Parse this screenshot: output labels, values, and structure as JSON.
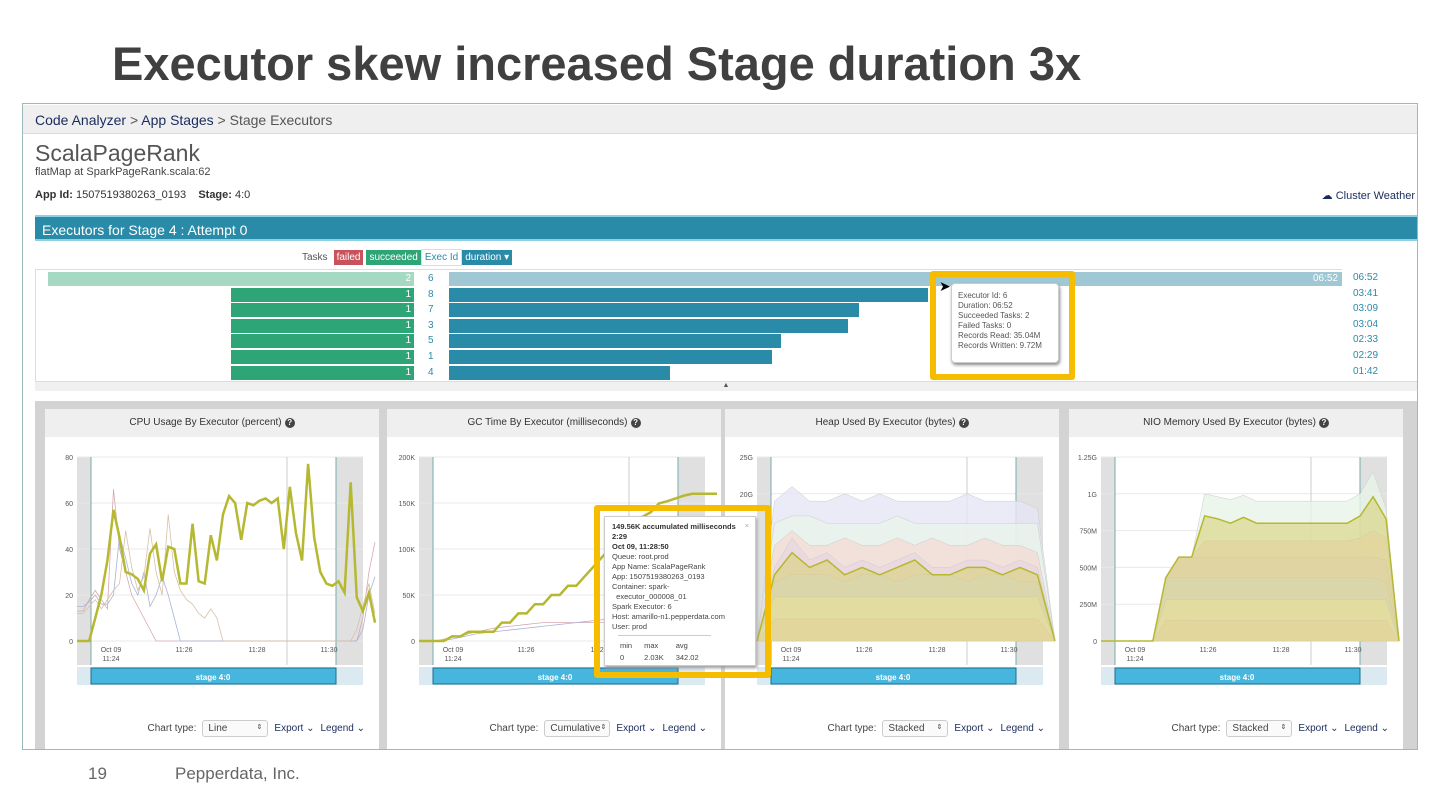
{
  "slide": {
    "title": "Executor skew increased Stage duration 3x",
    "page_number": "19",
    "footer": "Pepperdata, Inc."
  },
  "breadcrumb": {
    "items": [
      "Code Analyzer",
      "App Stages",
      "Stage Executors"
    ],
    "sep": ">"
  },
  "app": {
    "name": "ScalaPageRank",
    "subtitle": "flatMap at SparkPageRank.scala:62",
    "app_id_label": "App Id:",
    "app_id": "1507519380263_0193",
    "stage_label": "Stage:",
    "stage": "4:0",
    "weather": "Cluster Weather"
  },
  "executors": {
    "header": "Executors for Stage 4 : Attempt 0",
    "legend": {
      "tasks": "Tasks",
      "failed": "failed",
      "succeeded": "succeeded",
      "exec_id": "Exec Id",
      "duration": "duration ▾"
    },
    "rows": [
      {
        "id": "6",
        "succeeded": 2,
        "duration": "06:52",
        "seconds": 412
      },
      {
        "id": "8",
        "succeeded": 1,
        "duration": "03:41",
        "seconds": 221
      },
      {
        "id": "7",
        "succeeded": 1,
        "duration": "03:09",
        "seconds": 189
      },
      {
        "id": "3",
        "succeeded": 1,
        "duration": "03:04",
        "seconds": 184
      },
      {
        "id": "5",
        "succeeded": 1,
        "duration": "02:33",
        "seconds": 153
      },
      {
        "id": "1",
        "succeeded": 1,
        "duration": "02:29",
        "seconds": 149
      },
      {
        "id": "4",
        "succeeded": 1,
        "duration": "01:42",
        "seconds": 102
      }
    ],
    "tooltip": [
      "Executor Id: 6",
      "Duration: 06:52",
      "Succeeded Tasks: 2",
      "Failed Tasks: 0",
      "Records Read: 35.04M",
      "Records Written: 9.72M"
    ]
  },
  "gc_tooltip": {
    "lines": [
      "149.56K accumulated milliseconds",
      "2:29",
      "Oct 09, 11:28:50",
      "Queue: root.prod",
      "App Name: ScalaPageRank",
      "App: 1507519380263_0193",
      "Container: spark-",
      "  executor_000008_01",
      "Spark Executor: 6",
      "Host: amarillo-n1.pepperdata.com",
      "User: prod"
    ],
    "stats_headers": [
      "min",
      "max",
      "avg"
    ],
    "stats": [
      "0",
      "2.03K",
      "342.02"
    ],
    "close": "×"
  },
  "controls": {
    "chart_type_label": "Chart type:",
    "export": "Export ⌄",
    "legend": "Legend ⌄",
    "stage_label": "stage 4:0"
  },
  "colors": {
    "accent": "#2a8ba8",
    "highlight": "#f6bc00",
    "main_series": "#b5b830",
    "succeeded": "#2ea577",
    "failed": "#c9535d"
  },
  "chart_data": [
    {
      "type": "line",
      "title": "CPU Usage By Executor (percent)",
      "chart_type": "Line",
      "ylim": [
        0,
        80
      ],
      "yticks": [
        "0",
        "20",
        "40",
        "60",
        "80"
      ],
      "ytick_values": [
        0,
        20,
        40,
        60,
        80
      ],
      "xticks": [
        "Oct 09\n11:24",
        "11:26",
        "11:28",
        "11:30"
      ],
      "main": [
        0,
        0,
        0,
        10,
        20,
        35,
        57,
        45,
        30,
        29,
        27,
        22,
        38,
        42,
        26,
        41,
        40,
        25,
        25,
        51,
        26,
        25,
        46,
        35,
        55,
        63,
        60,
        44,
        60,
        59,
        61,
        62,
        60,
        62,
        40,
        67,
        47,
        35,
        77,
        45,
        30,
        25,
        24,
        26,
        21,
        69,
        19,
        13,
        21,
        8
      ],
      "others": [
        [
          13,
          13,
          18,
          22,
          18,
          14,
          66,
          40,
          30,
          20,
          15,
          10,
          5,
          0,
          0,
          0,
          0,
          0,
          0,
          0,
          0,
          0,
          0,
          0,
          0,
          0,
          0,
          0,
          0,
          0,
          0,
          0,
          0,
          0,
          0,
          0,
          0,
          0,
          0,
          0,
          0,
          0,
          0,
          0,
          0,
          0,
          0,
          10,
          30,
          43
        ],
        [
          15,
          15,
          17,
          20,
          16,
          16,
          20,
          46,
          36,
          25,
          20,
          30,
          15,
          20,
          28,
          20,
          10,
          0,
          0,
          0,
          0,
          0,
          0,
          0,
          0,
          0,
          0,
          0,
          0,
          0,
          0,
          0,
          0,
          0,
          0,
          0,
          0,
          0,
          0,
          0,
          0,
          0,
          0,
          0,
          0,
          0,
          0,
          5,
          20,
          28
        ],
        [
          12,
          12,
          15,
          18,
          14,
          18,
          22,
          25,
          48,
          32,
          22,
          28,
          49,
          30,
          20,
          55,
          30,
          22,
          18,
          16,
          12,
          10,
          14,
          10,
          0,
          0,
          0,
          0,
          0,
          0,
          0,
          0,
          0,
          0,
          0,
          0,
          0,
          0,
          0,
          0,
          0,
          0,
          0,
          0,
          0,
          0,
          5,
          15,
          25,
          12
        ]
      ]
    },
    {
      "type": "line",
      "title": "GC Time By Executor (milliseconds)",
      "chart_type": "Cumulative",
      "ylim": [
        0,
        200000
      ],
      "yticks": [
        "0",
        "50K",
        "100K",
        "150K",
        "200K"
      ],
      "ytick_values": [
        0,
        50000,
        100000,
        150000,
        200000
      ],
      "xticks": [
        "Oct 09\n11:24",
        "11:26",
        "11:28",
        "11:30"
      ],
      "main": [
        0,
        0,
        0,
        0,
        5000,
        5000,
        10000,
        10000,
        10000,
        10000,
        20000,
        20000,
        30000,
        30000,
        40000,
        40000,
        50000,
        50000,
        60000,
        60000,
        70000,
        80000,
        90000,
        100000,
        110000,
        120000,
        125000,
        135000,
        140000,
        149560,
        152000,
        155000,
        158000,
        160000,
        160000,
        160000,
        160000
      ],
      "others": [
        [
          0,
          0,
          0,
          2000,
          4000,
          5000,
          8000,
          10000,
          12000,
          14000,
          15000,
          16000,
          17000,
          18000,
          19000,
          20000,
          20000,
          20000,
          20000,
          20000,
          20000,
          20000,
          20000,
          20000,
          20000,
          20000,
          20000,
          20000,
          20000,
          20000,
          20000,
          20000,
          20000,
          20000,
          20000,
          20000,
          20000
        ],
        [
          0,
          0,
          0,
          1000,
          2000,
          4000,
          6000,
          8000,
          9000,
          10000,
          11000,
          12000,
          13000,
          14000,
          15000,
          16000,
          17000,
          18000,
          19000,
          20000,
          21000,
          22000,
          23000,
          24000,
          25000,
          26000,
          27000,
          28000,
          29000,
          30000,
          30000,
          30000,
          30000,
          30000,
          30000,
          30000,
          30000
        ]
      ]
    },
    {
      "type": "area",
      "title": "Heap Used By Executor (bytes)",
      "chart_type": "Stacked",
      "ylim": [
        0,
        25
      ],
      "yticks": [
        "20G",
        "25G"
      ],
      "ytick_values": [
        20,
        25
      ],
      "xticks": [
        "Oct 09\n11:24",
        "11:26",
        "11:28",
        "11:30"
      ],
      "stack_tops": [
        [
          0,
          3,
          3,
          3,
          3,
          3,
          3,
          3,
          3,
          3,
          3,
          3,
          3,
          3,
          3,
          3,
          3,
          0
        ],
        [
          0,
          6,
          6,
          6,
          6,
          6,
          6,
          6,
          6,
          6,
          6,
          6,
          6,
          6,
          6,
          6,
          6,
          0
        ],
        [
          0,
          8,
          9,
          9,
          9,
          8,
          9,
          9,
          8,
          9,
          9,
          9,
          8,
          9,
          9,
          8,
          8,
          0
        ],
        [
          0,
          10,
          14,
          11,
          12,
          10,
          11,
          10,
          11,
          12,
          10,
          10,
          11,
          11,
          10,
          11,
          10,
          0
        ],
        [
          0,
          13,
          15,
          13,
          13,
          14,
          13,
          13,
          14,
          13,
          14,
          13,
          13,
          14,
          13,
          13,
          12,
          0
        ],
        [
          0,
          16,
          17,
          17,
          16,
          16,
          16,
          16,
          17,
          16,
          16,
          16,
          16,
          16,
          16,
          16,
          16,
          0
        ],
        [
          0,
          19,
          21,
          19,
          19,
          20,
          19,
          20,
          19,
          19,
          19,
          19,
          20,
          19,
          19,
          19,
          18,
          0
        ]
      ],
      "main": [
        0,
        9,
        12,
        10,
        11,
        9,
        10,
        9,
        10,
        11,
        9,
        9,
        10,
        10,
        9,
        10,
        9,
        0
      ]
    },
    {
      "type": "area",
      "title": "NIO Memory Used By Executor (bytes)",
      "chart_type": "Stacked",
      "ylim": [
        0,
        1.25
      ],
      "yticks": [
        "0",
        "250M",
        "500M",
        "750M",
        "1G",
        "1.25G"
      ],
      "ytick_values": [
        0,
        0.25,
        0.5,
        0.75,
        1,
        1.25
      ],
      "xticks": [
        "Oct 09\n11:24",
        "11:26",
        "11:28",
        "11:30"
      ],
      "stack_tops": [
        [
          0,
          0,
          0,
          0,
          0,
          0.14,
          0.14,
          0.14,
          0.14,
          0.14,
          0.14,
          0.14,
          0.14,
          0.14,
          0.14,
          0.14,
          0.14,
          0.14,
          0.14,
          0.14,
          0.14,
          0.14,
          0.14,
          0
        ],
        [
          0,
          0,
          0,
          0,
          0,
          0.28,
          0.28,
          0.28,
          0.28,
          0.28,
          0.28,
          0.28,
          0.28,
          0.28,
          0.28,
          0.28,
          0.28,
          0.28,
          0.28,
          0.28,
          0.28,
          0.28,
          0.28,
          0
        ],
        [
          0,
          0,
          0,
          0,
          0,
          0.43,
          0.43,
          0.43,
          0.43,
          0.43,
          0.43,
          0.43,
          0.43,
          0.43,
          0.43,
          0.43,
          0.43,
          0.43,
          0.43,
          0.43,
          0.43,
          0.43,
          0.4,
          0
        ],
        [
          0,
          0,
          0,
          0,
          0,
          0.43,
          0.57,
          0.57,
          0.57,
          0.57,
          0.57,
          0.57,
          0.57,
          0.57,
          0.57,
          0.57,
          0.57,
          0.57,
          0.57,
          0.57,
          0.57,
          0.57,
          0.55,
          0
        ],
        [
          0,
          0,
          0,
          0,
          0,
          0.43,
          0.57,
          0.57,
          0.68,
          0.68,
          0.68,
          0.68,
          0.68,
          0.68,
          0.68,
          0.68,
          0.68,
          0.68,
          0.68,
          0.68,
          0.7,
          0.75,
          0.7,
          0
        ],
        [
          0,
          0,
          0,
          0,
          0,
          0.43,
          0.57,
          0.57,
          1.0,
          0.98,
          0.96,
          0.99,
          0.95,
          0.95,
          0.95,
          0.95,
          0.95,
          0.95,
          0.95,
          0.95,
          1.0,
          1.15,
          0.9,
          0
        ]
      ],
      "main": [
        0,
        0,
        0,
        0,
        0,
        0.43,
        0.57,
        0.57,
        0.85,
        0.83,
        0.8,
        0.84,
        0.8,
        0.8,
        0.8,
        0.8,
        0.8,
        0.8,
        0.8,
        0.8,
        0.85,
        0.98,
        0.83,
        0
      ]
    }
  ]
}
